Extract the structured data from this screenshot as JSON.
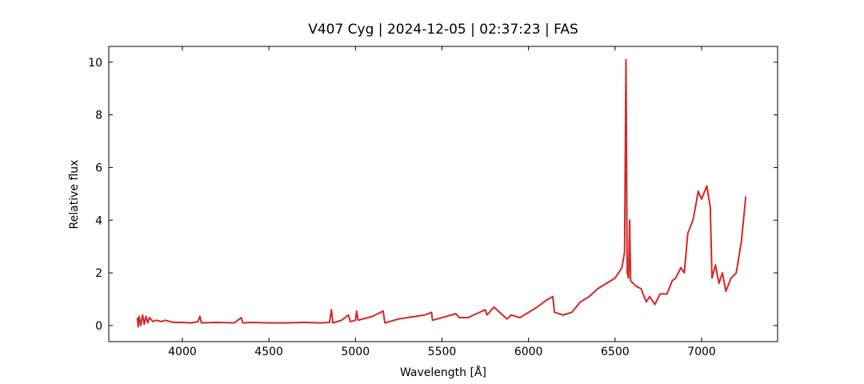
{
  "chart_data": {
    "type": "line",
    "title": "V407 Cyg | 2024-12-05 | 02:37:23 | FAS",
    "x_label": "Wavelength [Å]",
    "y_label": "Relative flux",
    "xlim": [
      3575,
      7439
    ],
    "ylim": [
      -0.61,
      10.6
    ],
    "xticks": [
      4000,
      4500,
      5000,
      5500,
      6000,
      6500,
      7000
    ],
    "yticks": [
      0,
      2,
      4,
      6,
      8,
      10
    ],
    "grid": false,
    "series": [
      {
        "color": "#d62728",
        "x": [
          3740,
          3745,
          3750,
          3760,
          3770,
          3780,
          3790,
          3800,
          3810,
          3830,
          3850,
          3880,
          3900,
          3950,
          4000,
          4050,
          4090,
          4101,
          4110,
          4200,
          4300,
          4340,
          4350,
          4400,
          4500,
          4600,
          4700,
          4800,
          4850,
          4861,
          4870,
          4920,
          4960,
          4970,
          5000,
          5007,
          5015,
          5100,
          5160,
          5170,
          5250,
          5300,
          5400,
          5440,
          5445,
          5500,
          5580,
          5600,
          5650,
          5700,
          5750,
          5760,
          5800,
          5850,
          5876,
          5900,
          5950,
          6000,
          6050,
          6100,
          6140,
          6150,
          6200,
          6250,
          6300,
          6350,
          6400,
          6450,
          6500,
          6540,
          6555,
          6563,
          6570,
          6578,
          6584,
          6590,
          6620,
          6650,
          6680,
          6700,
          6730,
          6760,
          6800,
          6830,
          6850,
          6880,
          6900,
          6920,
          6950,
          6970,
          6980,
          7000,
          7030,
          7050,
          7060,
          7080,
          7100,
          7120,
          7140,
          7170,
          7200,
          7230,
          7255
        ],
        "values": [
          0.3,
          -0.05,
          0.35,
          0.0,
          0.4,
          0.05,
          0.35,
          0.1,
          0.3,
          0.15,
          0.2,
          0.15,
          0.2,
          0.12,
          0.12,
          0.1,
          0.15,
          0.35,
          0.1,
          0.12,
          0.1,
          0.3,
          0.1,
          0.12,
          0.1,
          0.1,
          0.12,
          0.1,
          0.12,
          0.6,
          0.1,
          0.2,
          0.4,
          0.15,
          0.2,
          0.55,
          0.2,
          0.35,
          0.55,
          0.1,
          0.25,
          0.3,
          0.4,
          0.5,
          0.2,
          0.3,
          0.45,
          0.3,
          0.3,
          0.45,
          0.6,
          0.4,
          0.7,
          0.4,
          0.25,
          0.4,
          0.3,
          0.5,
          0.7,
          0.95,
          1.1,
          0.5,
          0.4,
          0.5,
          0.9,
          1.1,
          1.4,
          1.6,
          1.8,
          2.2,
          2.8,
          10.1,
          2.0,
          1.8,
          4.0,
          1.7,
          1.5,
          1.4,
          0.9,
          1.1,
          0.8,
          1.2,
          1.2,
          1.7,
          1.8,
          2.2,
          2.0,
          3.5,
          4.0,
          4.7,
          5.1,
          4.8,
          5.3,
          4.5,
          1.8,
          2.3,
          1.6,
          2.0,
          1.3,
          1.8,
          2.0,
          3.2,
          4.9
        ]
      }
    ]
  }
}
